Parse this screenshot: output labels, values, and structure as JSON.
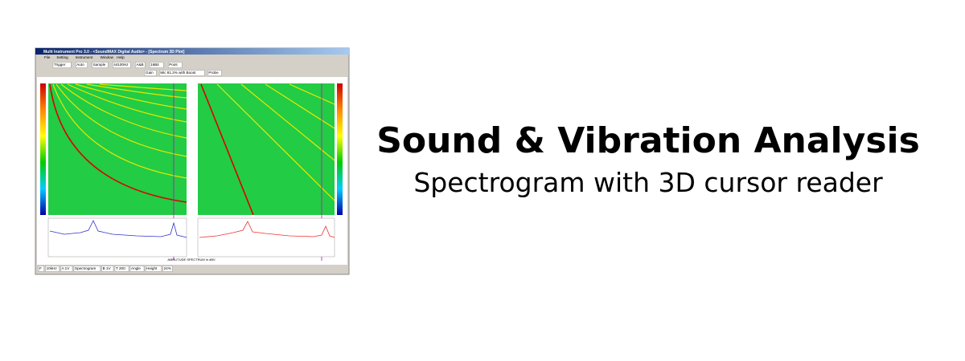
{
  "banner": {
    "title": "Sound & Vibration Analysis",
    "subtitle": "Spectrogram with 3D cursor reader"
  },
  "window": {
    "title": "Multi Instrument Pro 3.0 - <SoundMAX Digital Audio> - [Spectrum 3D Plot]",
    "menu": [
      "File",
      "Setting",
      "Instrument",
      "Window",
      "Help"
    ],
    "toolbar1": [
      "Trigger",
      "Auto",
      "Sample",
      "44100Hz",
      "A&B",
      "16Bit",
      "Point"
    ],
    "toolbar2": [
      "Gain",
      "Mic 81.2% with Boost",
      "Probe"
    ],
    "bottom": [
      "F",
      "10kHz",
      "A 1V",
      "Spectrogram",
      "B 1V",
      "T 200",
      "Angle",
      "Height",
      "24%"
    ],
    "axis_caption": "AMPLITUDE SPECTRUM in dBV"
  }
}
